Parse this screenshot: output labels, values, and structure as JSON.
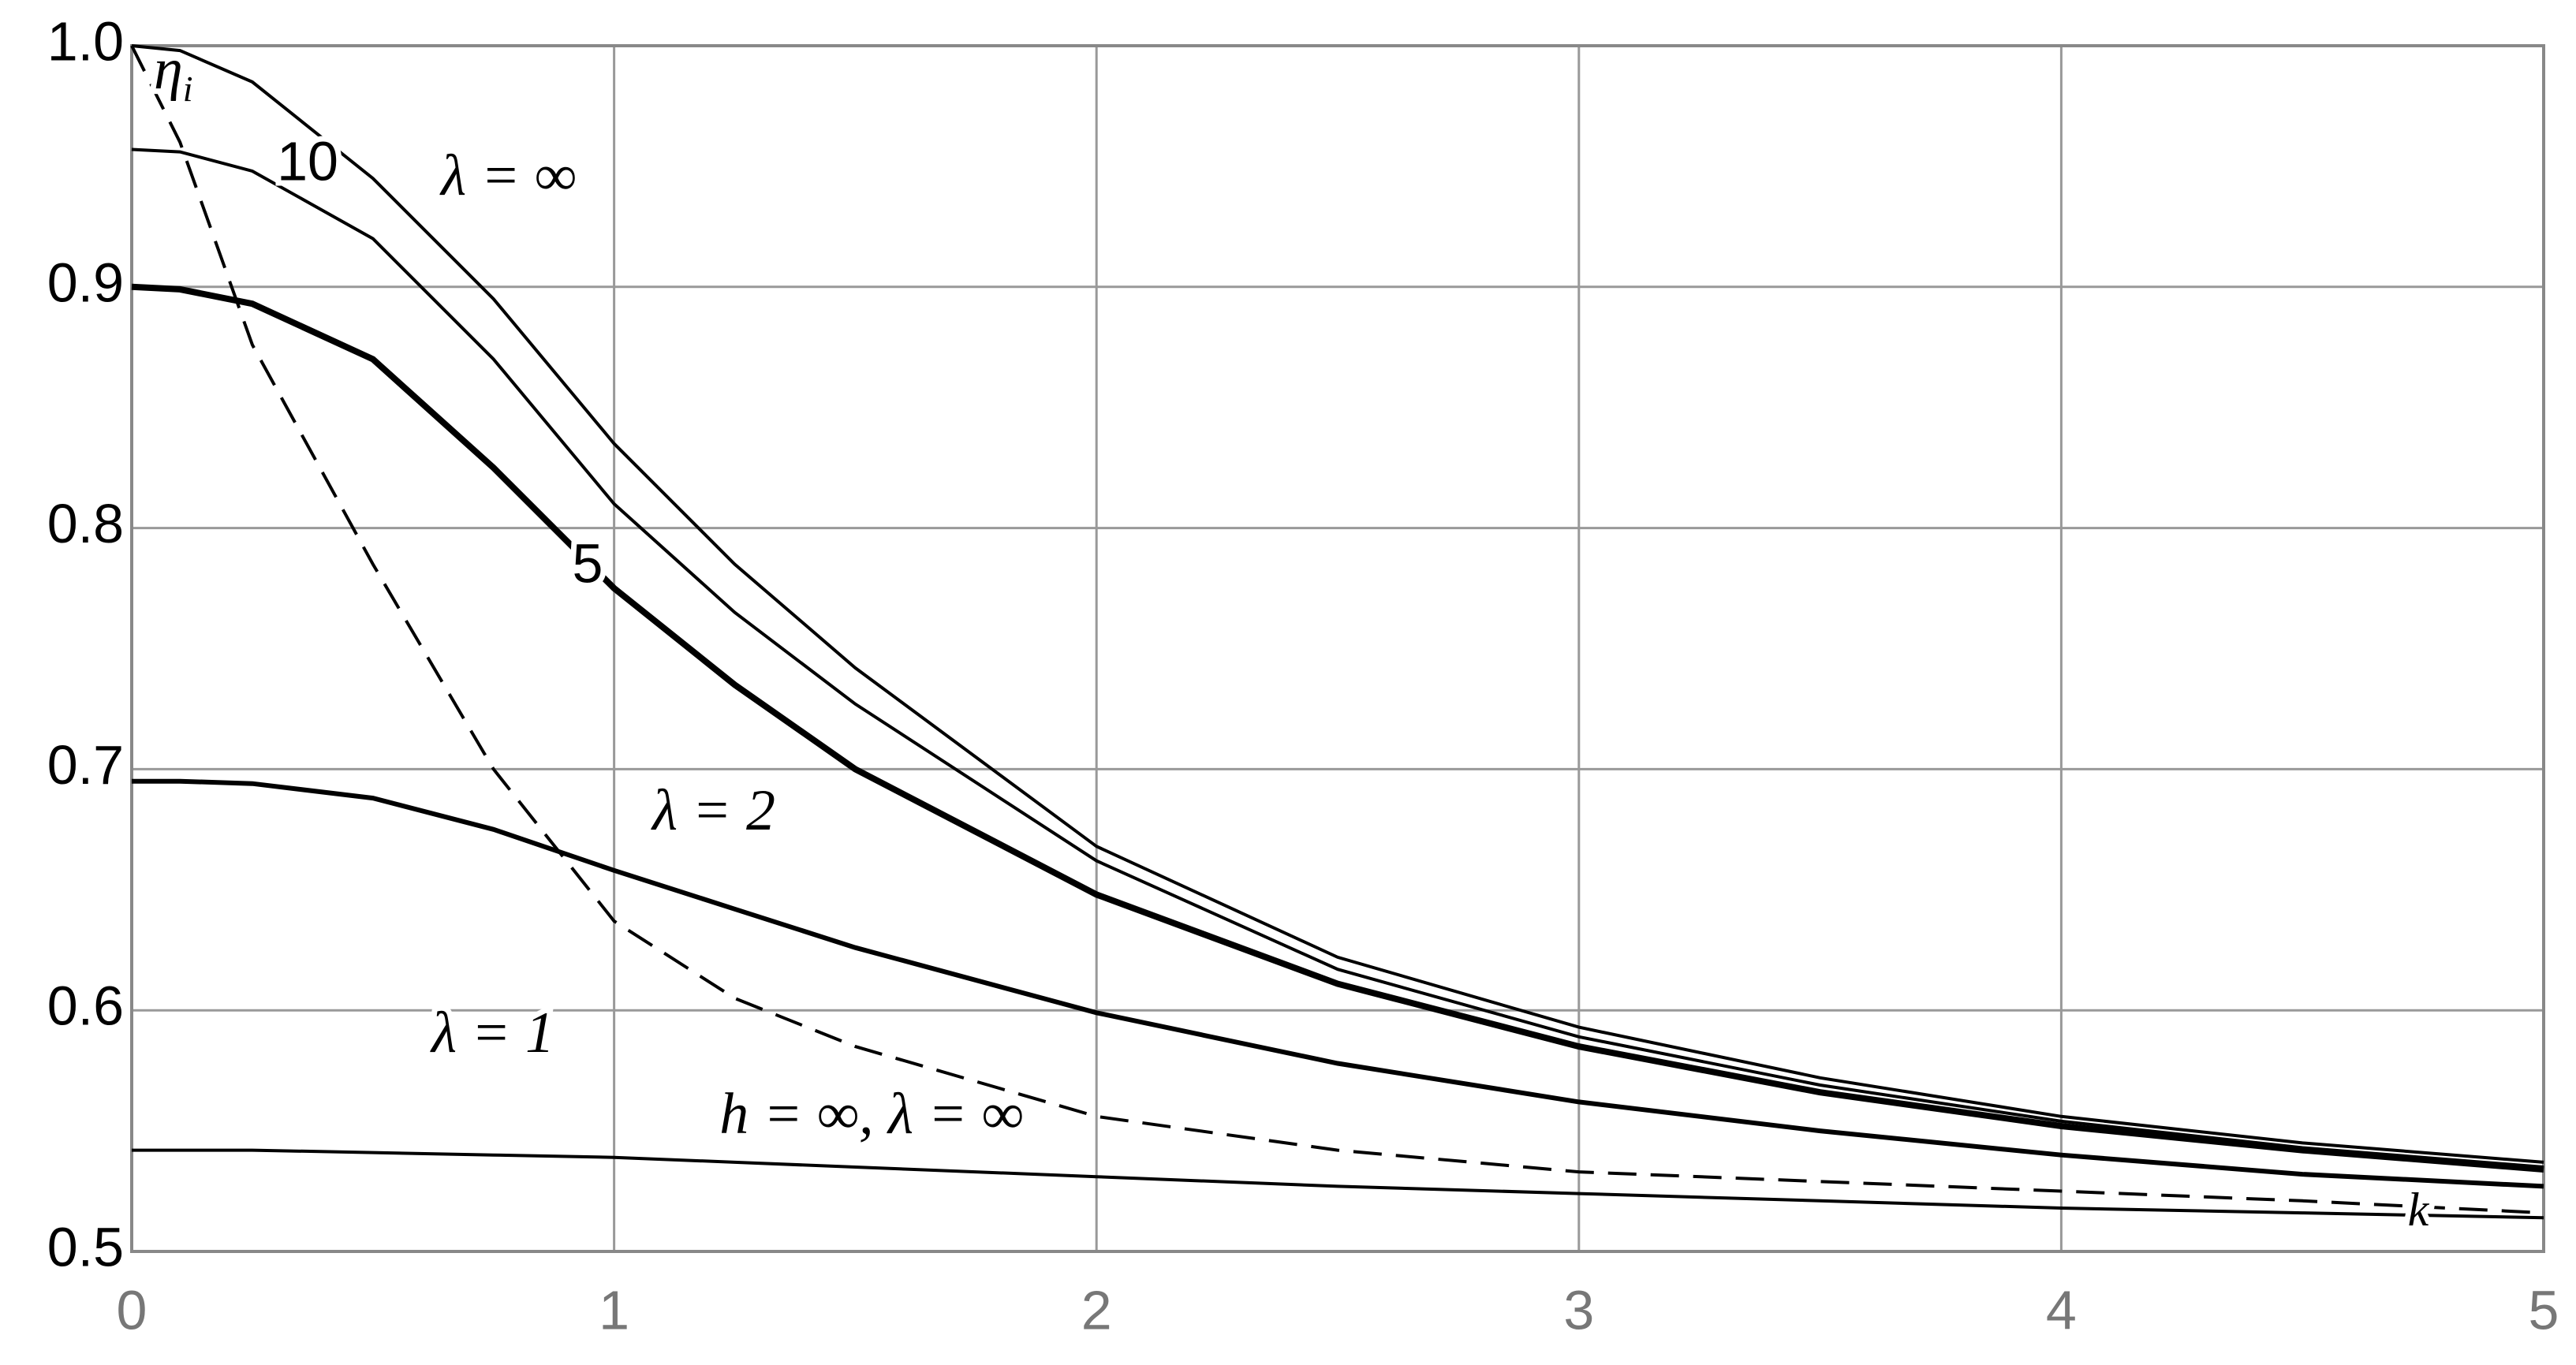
{
  "chart_data": {
    "type": "line",
    "ylabel": {
      "main": "η",
      "sub": "i"
    },
    "x": [
      0,
      0.1,
      0.25,
      0.5,
      0.75,
      1,
      1.25,
      1.5,
      2,
      2.5,
      3,
      3.5,
      4,
      4.5,
      5
    ],
    "series": [
      {
        "name": "λ = ∞",
        "color": "#000000",
        "line_width": 2,
        "dash": false,
        "values": [
          1.0,
          0.998,
          0.985,
          0.945,
          0.895,
          0.835,
          0.785,
          0.742,
          0.668,
          0.622,
          0.593,
          0.572,
          0.556,
          0.545,
          0.537
        ]
      },
      {
        "name": "10",
        "color": "#000000",
        "line_width": 2,
        "dash": false,
        "values": [
          0.957,
          0.956,
          0.948,
          0.92,
          0.87,
          0.81,
          0.765,
          0.727,
          0.662,
          0.617,
          0.589,
          0.569,
          0.554,
          0.543,
          0.535
        ]
      },
      {
        "name": "5",
        "color": "#000000",
        "line_width": 4,
        "dash": false,
        "values": [
          0.9,
          0.899,
          0.893,
          0.87,
          0.825,
          0.775,
          0.735,
          0.7,
          0.648,
          0.611,
          0.585,
          0.566,
          0.552,
          0.542,
          0.534
        ]
      },
      {
        "name": "λ = 2",
        "color": "#000000",
        "line_width": 3,
        "dash": false,
        "values": [
          0.695,
          0.695,
          0.694,
          0.688,
          0.675,
          0.658,
          0.642,
          0.626,
          0.599,
          0.578,
          0.562,
          0.55,
          0.54,
          0.532,
          0.527
        ]
      },
      {
        "name": "λ = 1",
        "color": "#000000",
        "line_width": 2,
        "dash": false,
        "values": [
          0.542,
          0.542,
          0.542,
          0.541,
          0.54,
          0.539,
          0.537,
          0.535,
          0.531,
          0.527,
          0.524,
          0.521,
          0.518,
          0.516,
          0.514
        ]
      },
      {
        "name": "h = ∞, λ = ∞",
        "color": "#000000",
        "line_width": 2,
        "dash": true,
        "values": [
          1.0,
          0.96,
          0.876,
          0.785,
          0.7,
          0.637,
          0.605,
          0.585,
          0.556,
          0.542,
          0.533,
          0.529,
          0.525,
          0.521,
          0.516
        ]
      }
    ],
    "annotations": [
      "k"
    ],
    "xlim": [
      0,
      5
    ],
    "ylim": [
      0.5,
      1.0
    ],
    "xticks": [
      0,
      1,
      2,
      3,
      4,
      5
    ],
    "yticks": [
      0.5,
      0.6,
      0.7,
      0.8,
      0.9,
      {
        "value": 1,
        "label": "1.0"
      }
    ],
    "grid": true
  }
}
